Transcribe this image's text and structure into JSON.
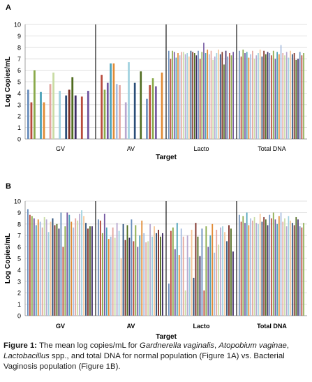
{
  "colors": {
    "palette": [
      "#6a8fbd",
      "#b84a3c",
      "#8aaa4a",
      "#7357a0",
      "#4aa1b8",
      "#e18b35",
      "#a7bde0",
      "#e3a6a0",
      "#c9dca4",
      "#b8a8cf",
      "#9fd1df",
      "#f6c79a",
      "#2b4e78",
      "#7a2b22",
      "#4f6b1f",
      "#3d2a64"
    ],
    "grid": "#d9d9d9",
    "divider": "#000000"
  },
  "caption": {
    "label": "Figure 1:",
    "parts": [
      {
        "text": " The mean log copies/mL for ",
        "style": "normal"
      },
      {
        "text": "Gardnerella vaginalis",
        "style": "italic"
      },
      {
        "text": ", ",
        "style": "normal"
      },
      {
        "text": "Atopobium vaginae",
        "style": "italic"
      },
      {
        "text": ", ",
        "style": "normal"
      },
      {
        "text": "Lactobacillus",
        "style": "italic"
      },
      {
        "text": " spp., and total DNA for normal population (Figure 1A) vs. Bacterial Vaginosis population (Figure 1B).",
        "style": "normal"
      }
    ]
  },
  "chart_data": [
    {
      "type": "bar",
      "panel_label": "A",
      "xlabel": "Target",
      "ylabel": "Log Copies/mL",
      "ylim": [
        0,
        10
      ],
      "yticks": [
        0,
        1,
        2,
        3,
        4,
        5,
        6,
        7,
        8,
        9,
        10
      ],
      "grid": true,
      "category_labels_bold": false,
      "categories": [
        "GV",
        "AV",
        "Lacto",
        "Total DNA"
      ],
      "groups": [
        {
          "category": "GV",
          "values": [
            4.3,
            3.2,
            6.0,
            0,
            4.1,
            3.2,
            0,
            4.8,
            5.8,
            0,
            4.2,
            0,
            3.8,
            4.3,
            5.4,
            3.8,
            0,
            3.7,
            0,
            4.2,
            0
          ]
        },
        {
          "category": "AV",
          "values": [
            0,
            5.6,
            4.3,
            4.9,
            6.6,
            6.6,
            4.8,
            4.7,
            0,
            3.2,
            6.7,
            0,
            4.9,
            0,
            5.9,
            0,
            3.5,
            4.7,
            5.3,
            4.6,
            0,
            5.8
          ]
        },
        {
          "category": "Lacto",
          "values": [
            7.7,
            7.0,
            7.7,
            7.6,
            7.1,
            7.5,
            7.3,
            7.6,
            7.6,
            7.4,
            7.5,
            7.2,
            7.7,
            7.6,
            7.5,
            7.3,
            7.7,
            7.0,
            7.6,
            8.4,
            7.5,
            7.8,
            7.4,
            7.7,
            6.9,
            7.2,
            7.5,
            7.8,
            7.4,
            7.6,
            6.5,
            7.7,
            7.2,
            7.5,
            7.3,
            7.6
          ]
        },
        {
          "category": "Total DNA",
          "values": [
            7.7,
            7.2,
            7.8,
            7.5,
            7.6,
            7.1,
            7.4,
            7.7,
            7.0,
            7.3,
            7.5,
            7.8,
            7.2,
            7.7,
            7.4,
            7.6,
            7.5,
            7.3,
            7.7,
            7.0,
            7.6,
            7.4,
            8.2,
            7.5,
            7.3,
            7.6,
            7.1,
            7.7,
            7.4,
            7.5,
            6.9,
            7.0,
            7.6,
            7.3,
            7.5
          ]
        }
      ]
    },
    {
      "type": "bar",
      "panel_label": "B",
      "xlabel": "Target",
      "ylabel": "Log Copies/mL",
      "ylim": [
        0,
        10
      ],
      "yticks": [
        0,
        1,
        2,
        3,
        4,
        5,
        6,
        7,
        8,
        9,
        10
      ],
      "grid": true,
      "category_labels_bold": true,
      "categories": [
        "GV",
        "AV",
        "Lacto",
        "Total DNA"
      ],
      "groups": [
        {
          "category": "GV",
          "values": [
            9.3,
            8.8,
            8.7,
            8.5,
            7.9,
            8.4,
            8.2,
            7.7,
            8.6,
            8.4,
            7.3,
            8.2,
            8.5,
            7.9,
            8.0,
            7.6,
            9.0,
            6.0,
            7.8,
            9.0,
            8.8,
            8.2,
            7.7,
            8.5,
            8.3,
            8.9,
            9.2,
            8.7,
            8.1,
            7.6,
            7.8,
            7.8
          ]
        },
        {
          "category": "AV",
          "values": [
            8.4,
            8.3,
            7.2,
            8.9,
            7.7,
            6.7,
            6.9,
            7.7,
            6.8,
            8.1,
            7.4,
            5.0,
            8.0,
            6.6,
            7.9,
            6.8,
            8.4,
            6.5,
            7.9,
            6.0,
            7.0,
            8.3,
            7.2,
            6.4,
            6.5,
            8.0,
            6.9,
            7.8,
            7.2,
            7.5,
            6.9,
            7.2
          ]
        },
        {
          "category": "Lacto",
          "values": [
            2.8,
            7.4,
            7.7,
            5.8,
            8.1,
            5.3,
            7.6,
            6.9,
            2.2,
            7.0,
            5.1,
            7.5,
            3.3,
            8.1,
            6.9,
            5.2,
            7.6,
            2.2,
            7.8,
            6.0,
            7.0,
            8.0,
            5.5,
            7.5,
            6.2,
            7.7,
            7.8,
            7.3,
            6.5,
            7.9,
            7.6,
            5.6
          ]
        },
        {
          "category": "Total DNA",
          "values": [
            8.8,
            8.2,
            8.7,
            8.1,
            9.0,
            7.9,
            8.5,
            8.3,
            8.6,
            8.1,
            8.0,
            8.9,
            8.2,
            8.6,
            8.4,
            7.9,
            8.8,
            8.5,
            9.0,
            8.4,
            8.0,
            8.7,
            9.0,
            8.2,
            8.5,
            7.8,
            8.7,
            8.3,
            8.1,
            7.9,
            8.6,
            8.4,
            7.8,
            7.7,
            8.1
          ]
        }
      ]
    }
  ]
}
